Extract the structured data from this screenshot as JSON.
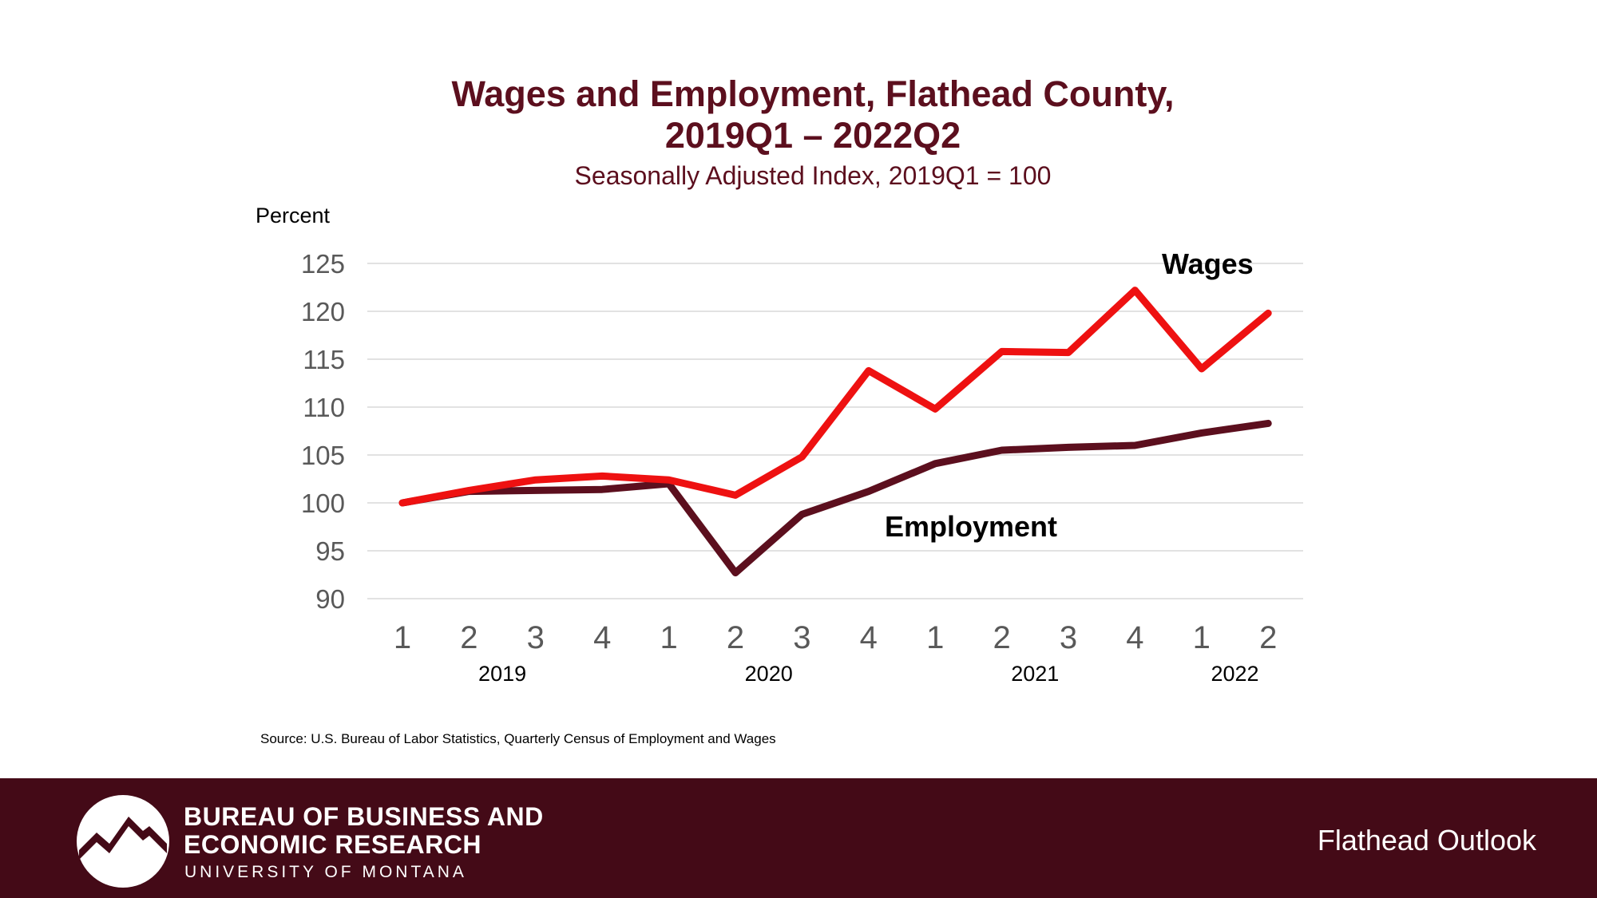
{
  "header": {
    "title_line1": "Wages and Employment, Flathead County,",
    "title_line2": "2019Q1 – 2022Q2",
    "subtitle": "Seasonally Adjusted Index, 2019Q1 = 100"
  },
  "chart_data": {
    "type": "line",
    "ylabel": "Percent",
    "ylim": [
      90,
      125
    ],
    "yticks": [
      90,
      95,
      100,
      105,
      110,
      115,
      120,
      125
    ],
    "grid": true,
    "categories": [
      "1",
      "2",
      "3",
      "4",
      "1",
      "2",
      "3",
      "4",
      "1",
      "2",
      "3",
      "4",
      "1",
      "2"
    ],
    "years": [
      {
        "label": "2019",
        "start": 0,
        "end": 3
      },
      {
        "label": "2020",
        "start": 4,
        "end": 7
      },
      {
        "label": "2021",
        "start": 8,
        "end": 11
      },
      {
        "label": "2022",
        "start": 12,
        "end": 13
      }
    ],
    "series": [
      {
        "name": "Wages",
        "color": "#ee1111",
        "values": [
          100.0,
          101.3,
          102.4,
          102.8,
          102.4,
          100.8,
          104.8,
          113.8,
          109.8,
          115.8,
          115.7,
          122.2,
          114.0,
          119.8
        ]
      },
      {
        "name": "Employment",
        "color": "#5c0f1e",
        "values": [
          100.0,
          101.2,
          101.3,
          101.4,
          102.0,
          92.7,
          98.8,
          101.2,
          104.1,
          105.5,
          105.8,
          106.0,
          107.3,
          108.3
        ]
      }
    ]
  },
  "source": "Source:  U.S. Bureau of Labor Statistics, Quarterly Census of Employment and Wages",
  "footer": {
    "org_line1": "BUREAU OF BUSINESS AND",
    "org_line2": "ECONOMIC RESEARCH",
    "org_line3": "UNIVERSITY OF MONTANA",
    "right_label": "Flathead Outlook",
    "background": "#440a17",
    "logo_icon": "mountain-logo-icon"
  }
}
